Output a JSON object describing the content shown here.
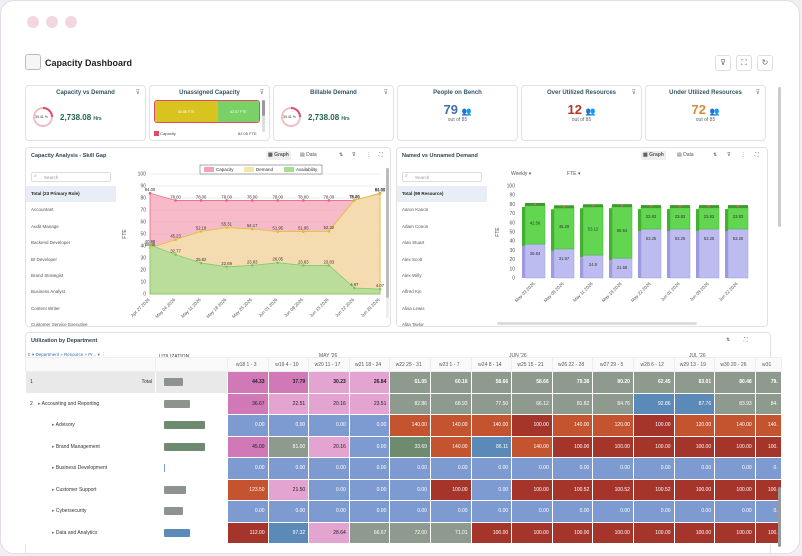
{
  "app": {
    "title": "Capacity Dashboard"
  },
  "header_icons": [
    "filter-icon",
    "expand-icon",
    "refresh-icon"
  ],
  "cards": [
    {
      "title": "Capacity vs Demand",
      "gauge": "39.41 %",
      "value": "2,738.08",
      "unit": "Hrs"
    },
    {
      "title": "Unassigned Capacity",
      "bar_left": "60.88 FTE",
      "bar_right": "62.07 FTE",
      "legend": "Capacity",
      "legend_value": "82.05 FTE"
    },
    {
      "title": "Billable Demand",
      "gauge": "39.41 %",
      "value": "2,738.08",
      "unit": "Hrs"
    },
    {
      "title": "People on Bench",
      "value": "79",
      "sub": "out of 85"
    },
    {
      "title": "Over Utilized Resources",
      "value": "12",
      "sub": "out of 85"
    },
    {
      "title": "Under Utilized Resources",
      "value": "72",
      "sub": "out of 85"
    }
  ],
  "skill": {
    "title": "Capacity Analysis - Skill Gap",
    "graph": "Graph",
    "data": "Data",
    "search": "Search",
    "roles": [
      "Total (23 Primary Role)",
      "Accountant",
      "Audit Manage",
      "Backend Developer",
      "BI Developer",
      "Brand Strategist",
      "Business Analyst",
      "Content Writer",
      "Customer Service Executive"
    ],
    "legend": [
      "Capacity",
      "Demand",
      "Availability"
    ],
    "ylabel": "FTE"
  },
  "named": {
    "title": "Named vs Unnamed Demand",
    "graph": "Graph",
    "data": "Data",
    "search": "Search",
    "period": "Weekly",
    "unit": "FTE",
    "people": [
      "Total (99 Resource)",
      "Aaron Kanon",
      "Adam Conon",
      "Alan Stuart",
      "Alex Scott",
      "Alex Willy",
      "Alfred Kin",
      "Alisa Lewis",
      "Alita Taylor"
    ],
    "ylabel": "FTE"
  },
  "util": {
    "title": "Utilization by Department",
    "dept_header": "Department » Resource » Pr...",
    "util_header": "UTILIZATION",
    "months": [
      "MAY '26",
      "JUN '26",
      "JUL '26"
    ],
    "weeks": [
      "w18 1 - 3",
      "w19 4 - 10",
      "w20 11 - 17",
      "w21 18 - 24",
      "w22 25 - 31",
      "w23 1 - 7",
      "w24 8 - 14",
      "w25 15 - 21",
      "w26 22 - 28",
      "w27 29 - 5",
      "w28 6 - 12",
      "w29 13 - 19",
      "w30 20 - 26",
      "w31"
    ],
    "rows": [
      {
        "level": "1",
        "name": "Total",
        "bar": 0.28,
        "vals": [
          "44.33",
          "37.79",
          "30.23",
          "26.84",
          "61.05",
          "60.16",
          "58.66",
          "58.66",
          "79.38",
          "80.20",
          "62.45",
          "83.01",
          "80.48",
          "79."
        ]
      },
      {
        "level": "2",
        "name": "Accounting and Reporting",
        "bar": 0.38,
        "vals": [
          "36.67",
          "22.51",
          "20.16",
          "23.51",
          "82.86",
          "68.93",
          "77.50",
          "66.12",
          "81.82",
          "84.76",
          "92.86",
          "87.76",
          "83.93",
          "84."
        ]
      },
      {
        "level": "",
        "name": "Advisory",
        "bar": 0.6,
        "vals": [
          "0.00",
          "0.00",
          "0.00",
          "0.00",
          "140.00",
          "140.00",
          "140.00",
          "100.00",
          "140.00",
          "120.00",
          "100.00",
          "120.00",
          "140.00",
          "140."
        ]
      },
      {
        "level": "",
        "name": "Brand Management",
        "bar": 0.6,
        "vals": [
          "45.00",
          "81.00",
          "20.16",
          "0.00",
          "33.69",
          "140.00",
          "86.11",
          "140.00",
          "100.00",
          "100.00",
          "100.00",
          "100.00",
          "100.00",
          "100."
        ]
      },
      {
        "level": "",
        "name": "Business Development",
        "bar": 0.02,
        "vals": [
          "0.00",
          "0.00",
          "0.00",
          "0.00",
          "0.00",
          "0.00",
          "0.00",
          "0.00",
          "0.00",
          "0.00",
          "0.00",
          "0.00",
          "0.00",
          "0."
        ]
      },
      {
        "level": "",
        "name": "Customer Support",
        "bar": 0.32,
        "vals": [
          "123.50",
          "21.50",
          "0.00",
          "0.00",
          "0.00",
          "100.00",
          "0.00",
          "100.00",
          "100.52",
          "100.52",
          "100.52",
          "100.00",
          "100.00",
          "100."
        ]
      },
      {
        "level": "",
        "name": "Cybersecurity",
        "bar": 0.28,
        "vals": [
          "0.00",
          "0.00",
          "0.00",
          "0.00",
          "0.00",
          "0.00",
          "0.00",
          "0.00",
          "0.00",
          "0.00",
          "0.00",
          "0.00",
          "0.00",
          "0."
        ]
      },
      {
        "level": "",
        "name": "Data and Analytics",
        "bar": 0.38,
        "vals": [
          "112.00",
          "97.32",
          "28.64",
          "66.67",
          "72.00",
          "71.01",
          "100.00",
          "100.00",
          "100.00",
          "100.00",
          "100.00",
          "100.00",
          "100.00",
          "100."
        ]
      }
    ]
  },
  "chart_data": [
    {
      "type": "area",
      "title": "Capacity Analysis - Skill Gap",
      "ylabel": "FTE",
      "ylim": [
        0,
        100
      ],
      "x": [
        "Apr 27 2026",
        "May 04 2026",
        "May 11 2026",
        "May 18 2026",
        "May 25 2026",
        "Jun 01 2026",
        "Jun 08 2026",
        "Jun 15 2026",
        "Jun 22 2026",
        "Jun 29 2026"
      ],
      "series": [
        {
          "name": "Capacity",
          "values": [
            84.0,
            78.0,
            78.0,
            78.0,
            78.0,
            78.0,
            78.0,
            78.0,
            78.0,
            84.0
          ]
        },
        {
          "name": "Demand",
          "values": [
            38.45,
            45.23,
            52.18,
            55.31,
            54.17,
            51.95,
            51.95,
            52.32,
            78.25,
            83.65
          ]
        },
        {
          "name": "Availability",
          "values": [
            40.98,
            32.77,
            25.82,
            22.69,
            23.83,
            26.05,
            23.83,
            23.83,
            4.97,
            4.07
          ]
        }
      ]
    },
    {
      "type": "bar",
      "title": "Named vs Unnamed Demand",
      "ylabel": "FTE",
      "ylim": [
        0,
        100
      ],
      "categories": [
        "May 03 2026",
        "May 08 2026",
        "May 11 2026",
        "May 18 2026",
        "May 22 2026",
        "Jun 01 2026",
        "Jun 08 2026",
        "Jun 22 2026"
      ],
      "series": [
        {
          "name": "Named",
          "values": [
            36.84,
            31.57,
            24.9,
            21.58,
            53.25,
            53.25,
            53.25,
            53.25
          ]
        },
        {
          "name": "Unnamed",
          "values": [
            42.56,
            45.29,
            53.12,
            56.54,
            23.83,
            23.83,
            23.83,
            23.83
          ]
        }
      ]
    }
  ]
}
